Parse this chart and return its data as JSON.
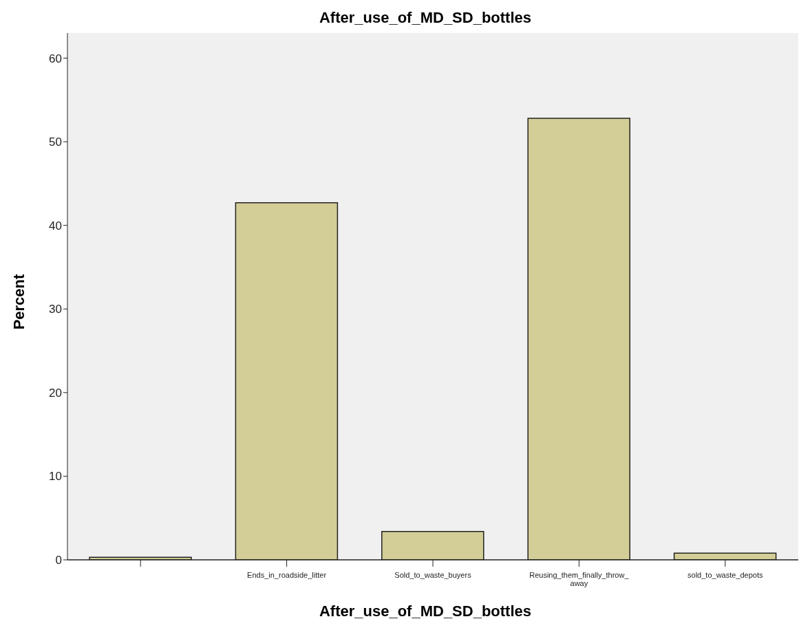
{
  "chart_data": {
    "type": "bar",
    "title": "After_use_of_MD_SD_bottles",
    "xlabel": "After_use_of_MD_SD_bottles",
    "ylabel": "Percent",
    "categories": [
      null,
      "Ends_in_roadside_litter",
      "Sold_to_waste_buyers",
      "Reusing_them_finally_throw_away",
      "sold_to_waste_depots"
    ],
    "values": [
      0.3,
      42.7,
      3.4,
      52.8,
      0.8
    ],
    "color": "#d3ce97",
    "ylim": [
      0,
      63
    ],
    "yticks": [
      0,
      10,
      20,
      30,
      40,
      50,
      60
    ],
    "grid": false
  }
}
